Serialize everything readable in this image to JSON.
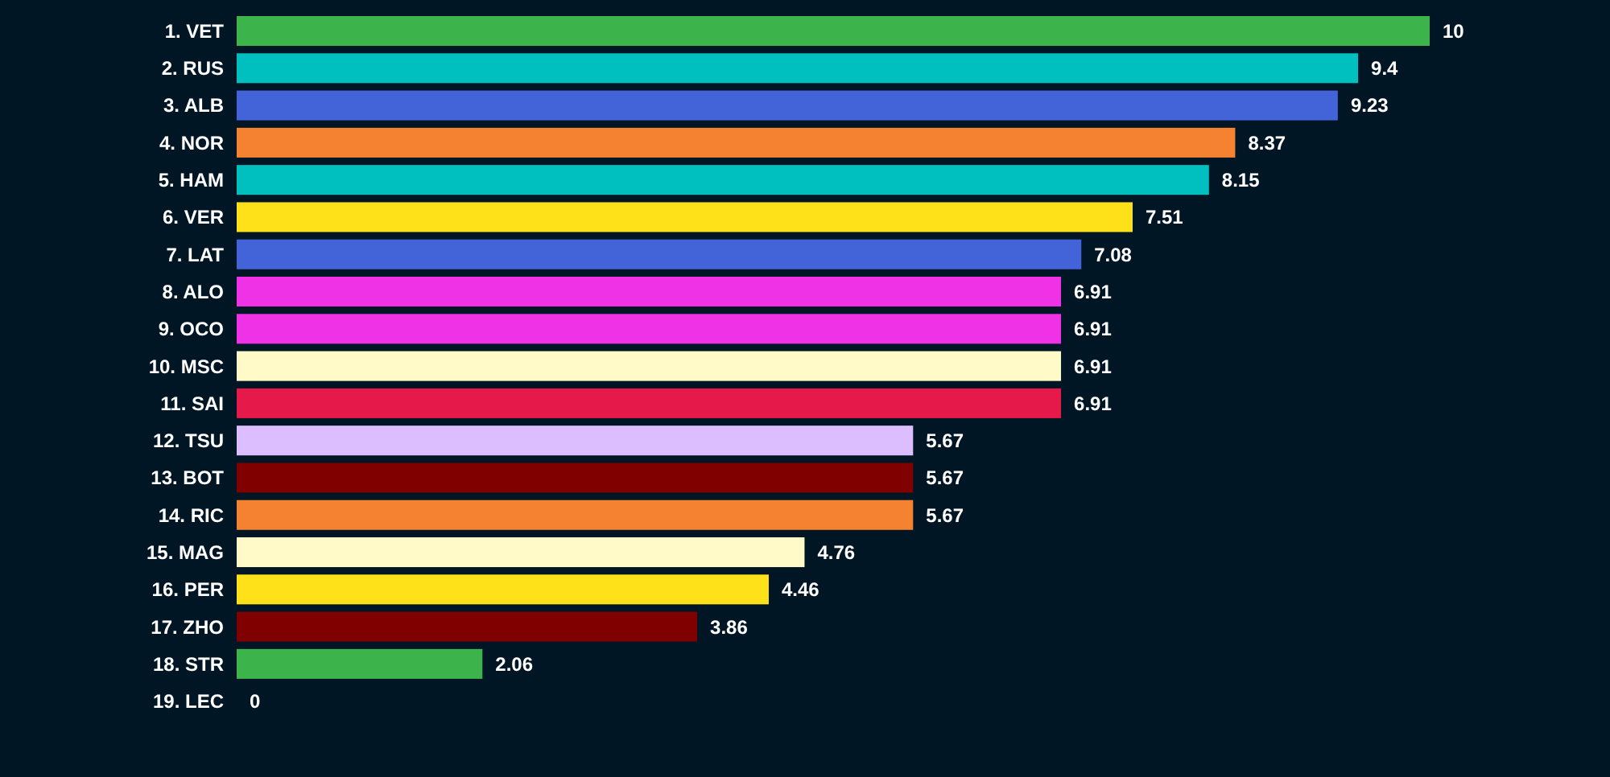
{
  "chart_data": {
    "type": "bar",
    "orientation": "horizontal",
    "data_labels": true,
    "categories": [
      "1. VET",
      "2. RUS",
      "3. ALB",
      "4. NOR",
      "5. HAM",
      "6. VER",
      "7. LAT",
      "8. ALO",
      "9. OCO",
      "10. MSC",
      "11. SAI",
      "12. TSU",
      "13. BOT",
      "14. RIC",
      "15. MAG",
      "16. PER",
      "17. ZHO",
      "18. STR",
      "19. LEC"
    ],
    "values": [
      10,
      9.4,
      9.23,
      8.37,
      8.15,
      7.51,
      7.08,
      6.91,
      6.91,
      6.91,
      6.91,
      5.67,
      5.67,
      5.67,
      4.76,
      4.46,
      3.86,
      2.06,
      0
    ],
    "colors": [
      "#3cb44b",
      "#00bfbf",
      "#4363d8",
      "#f58231",
      "#00bfbf",
      "#ffe119",
      "#4363d8",
      "#f032e6",
      "#f032e6",
      "#fffac8",
      "#e6194b",
      "#dcbeff",
      "#800000",
      "#f58231",
      "#fffac8",
      "#ffe119",
      "#800000",
      "#3cb44b",
      "#e6194b"
    ]
  }
}
